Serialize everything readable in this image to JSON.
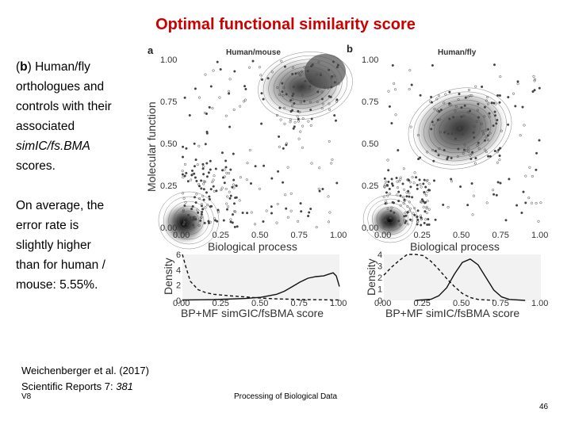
{
  "slide": {
    "title": "Optimal functional similarity score",
    "text": {
      "p1_b": "b",
      "p1_open": "(",
      "p1_close": ") Human/fly",
      "p1_line2": "orthologues and",
      "p1_line3": "controls with their",
      "p1_line4": "associated",
      "p1_line5_italic": "simICfsBMA",
      "p1_line5_italic_parts": [
        "simIC/fs.BMA"
      ],
      "p1_line6": "scores.",
      "p2_line1": "On average, the",
      "p2_line2": "error rate is",
      "p2_line3": "slightly higher",
      "p2_line4": "than for human /",
      "p2_line5": "mouse: 5.55%."
    },
    "citation": {
      "line1": "Weichenberger et al. (2017)",
      "line2_prefix": "Scientific Reports 7: ",
      "line2_italic": "381"
    },
    "footer": {
      "left": "V8",
      "center": "Processing of Biological Data",
      "page": "46"
    }
  },
  "figure": {
    "panel_a": {
      "letter": "a",
      "title": "Human/mouse"
    },
    "panel_b": {
      "letter": "b",
      "title": "Human/fly"
    },
    "y_axis_label": "Molecular function",
    "x_axis_label": "Biological process",
    "density_label": "Density",
    "x_score_label_a": "BP+MF simGIC/fsBMA score",
    "x_score_label_b": "BP+MF simIC/fsBMA score",
    "ticks": [
      "0.00",
      "0.25",
      "0.50",
      "0.75",
      "1.00"
    ],
    "density_ticks_a": [
      "0",
      "2",
      "4",
      "6"
    ],
    "density_ticks_b": [
      "0",
      "1",
      "2",
      "3",
      "4"
    ]
  },
  "chart_data": [
    {
      "type": "scatter",
      "panel": "a",
      "title": "Human/mouse",
      "xlabel": "Biological process",
      "ylabel": "Molecular function",
      "xlim": [
        0,
        1
      ],
      "ylim": [
        0,
        1
      ],
      "clusters": [
        {
          "name": "orthologues",
          "center": [
            0.88,
            0.88
          ]
        },
        {
          "name": "controls",
          "center": [
            0.0,
            0.0
          ]
        }
      ]
    },
    {
      "type": "scatter",
      "panel": "b",
      "title": "Human/fly",
      "xlabel": "Biological process",
      "ylabel": "Molecular function",
      "xlim": [
        0,
        1
      ],
      "ylim": [
        0,
        1
      ],
      "clusters": [
        {
          "name": "orthologues",
          "center": [
            0.5,
            0.6
          ]
        },
        {
          "name": "controls",
          "center": [
            0.05,
            0.04
          ]
        }
      ]
    },
    {
      "type": "line",
      "panel": "a-density",
      "xlabel": "BP+MF simGIC/fsBMA score",
      "ylabel": "Density",
      "xlim": [
        0,
        1
      ],
      "ylim": [
        0,
        6
      ],
      "series": [
        {
          "style": "dashed",
          "x": [
            0,
            0.02,
            0.05,
            0.1,
            0.15,
            0.2,
            0.3,
            0.4,
            0.5,
            0.6,
            0.7,
            0.8,
            1.0
          ],
          "y": [
            6.5,
            4.5,
            2.5,
            1.4,
            1.0,
            0.8,
            0.6,
            0.45,
            0.3,
            0.2,
            0.15,
            0.1,
            0.05
          ]
        },
        {
          "style": "solid",
          "x": [
            0,
            0.2,
            0.4,
            0.5,
            0.6,
            0.65,
            0.7,
            0.75,
            0.8,
            0.85,
            0.9,
            0.93,
            0.96,
            0.98,
            1.0
          ],
          "y": [
            0.05,
            0.1,
            0.25,
            0.4,
            0.8,
            1.2,
            1.8,
            2.4,
            2.9,
            3.1,
            3.2,
            3.4,
            3.6,
            3.2,
            1.8
          ]
        }
      ]
    },
    {
      "type": "line",
      "panel": "b-density",
      "xlabel": "BP+MF simIC/fsBMA score",
      "ylabel": "Density",
      "xlim": [
        0,
        1
      ],
      "ylim": [
        0,
        4
      ],
      "series": [
        {
          "style": "dashed",
          "x": [
            0,
            0.05,
            0.1,
            0.15,
            0.2,
            0.25,
            0.3,
            0.35,
            0.4,
            0.45,
            0.5,
            0.55,
            0.6,
            0.7
          ],
          "y": [
            2.2,
            2.9,
            3.5,
            4.0,
            4.1,
            3.9,
            3.4,
            2.7,
            1.9,
            1.2,
            0.6,
            0.25,
            0.08,
            0.0
          ]
        },
        {
          "style": "solid",
          "x": [
            0.2,
            0.3,
            0.35,
            0.4,
            0.45,
            0.5,
            0.55,
            0.6,
            0.65,
            0.7,
            0.75,
            0.8,
            0.9
          ],
          "y": [
            0.0,
            0.1,
            0.4,
            1.1,
            2.3,
            3.3,
            3.6,
            3.1,
            2.0,
            0.9,
            0.3,
            0.08,
            0.0
          ]
        }
      ]
    }
  ]
}
